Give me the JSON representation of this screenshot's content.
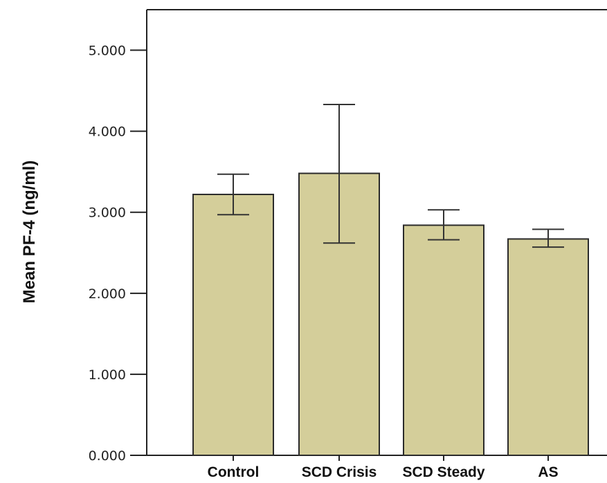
{
  "chart_data": {
    "type": "bar",
    "title": "",
    "xlabel": "",
    "ylabel": "Mean PF-4 (ng/ml)",
    "categories": [
      "Control",
      "SCD Crisis",
      "SCD Steady",
      "AS"
    ],
    "values": [
      3.22,
      3.48,
      2.84,
      2.67
    ],
    "error_low": [
      2.97,
      2.62,
      2.66,
      2.57
    ],
    "error_high": [
      3.47,
      4.33,
      3.03,
      2.79
    ],
    "ylim": [
      0,
      5.5
    ],
    "yticks": [
      0,
      1,
      2,
      3,
      4,
      5
    ],
    "ytick_labels": [
      "0.000",
      "1.000",
      "2.000",
      "3.000",
      "4.000",
      "5.000"
    ],
    "grid": false,
    "bar_color": "#D4CE9A",
    "bar_edge_color": "#2a2a2a"
  }
}
